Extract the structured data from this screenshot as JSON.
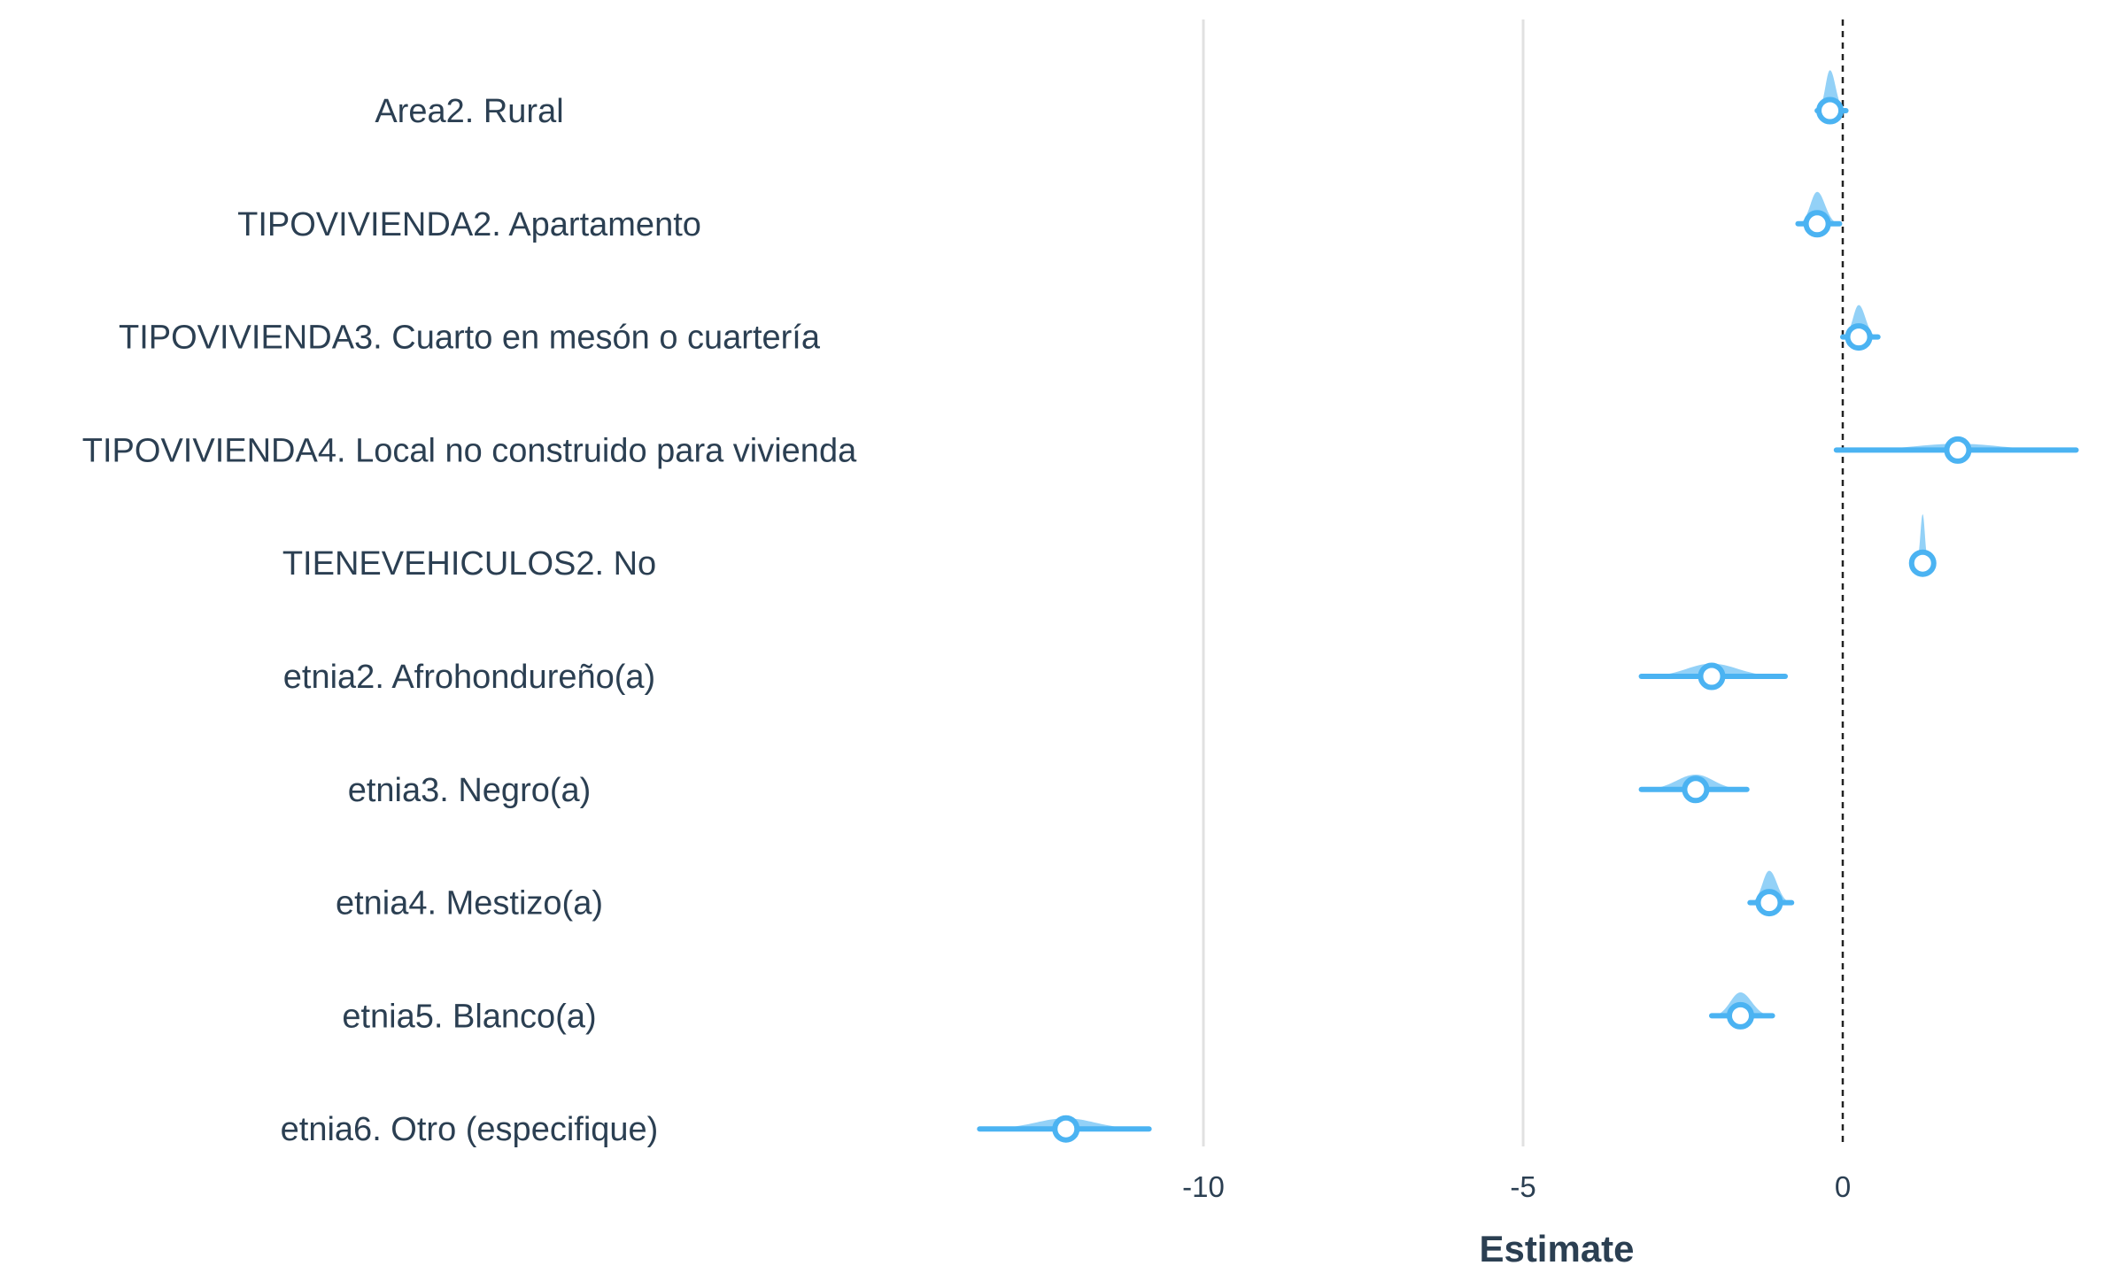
{
  "chart_data": {
    "type": "scatter",
    "xlabel": "Estimate",
    "ylabel": "",
    "xlim": [
      -13.8,
      4.0
    ],
    "x_ticks": [
      -10,
      -5,
      0
    ],
    "x_tick_labels": [
      "-10",
      "-5",
      "0"
    ],
    "reference_line": 0,
    "grid": true,
    "legend": "none",
    "colors": {
      "point": "#4bb3f2",
      "interval": "#4bb3f2",
      "density": "#4bb3f2",
      "marker_fill": "#ffffff",
      "reference_line": "#222222",
      "grid": "#e1e1e1",
      "text": "#2b3f52"
    },
    "terms": [
      {
        "label": "Area2. Rural",
        "estimate": -0.2,
        "low": -0.4,
        "high": 0.05,
        "density_height": 0.95
      },
      {
        "label": "TIPOVIVIENDA2. Apartamento",
        "estimate": -0.4,
        "low": -0.7,
        "high": -0.05,
        "density_height": 0.75
      },
      {
        "label": "TIPOVIVIENDA3. Cuarto en mesón o cuartería",
        "estimate": 0.25,
        "low": 0.0,
        "high": 0.55,
        "density_height": 0.75
      },
      {
        "label": "TIPOVIVIENDA4. Local no construido para vivienda",
        "estimate": 1.8,
        "low": -0.1,
        "high": 3.65,
        "density_height": 0.15
      },
      {
        "label": "TIENEVEHICULOS2. No",
        "estimate": 1.25,
        "low": 1.15,
        "high": 1.35,
        "density_height": 1.15
      },
      {
        "label": "etnia2. Afrohondureño(a)",
        "estimate": -2.05,
        "low": -3.15,
        "high": -0.9,
        "density_height": 0.3
      },
      {
        "label": "etnia3. Negro(a)",
        "estimate": -2.3,
        "low": -3.15,
        "high": -1.5,
        "density_height": 0.35
      },
      {
        "label": "etnia4. Mestizo(a)",
        "estimate": -1.15,
        "low": -1.45,
        "high": -0.8,
        "density_height": 0.75
      },
      {
        "label": "etnia5. Blanco(a)",
        "estimate": -1.6,
        "low": -2.05,
        "high": -1.1,
        "density_height": 0.55
      },
      {
        "label": "etnia6. Otro (especifique)",
        "estimate": -12.15,
        "low": -13.5,
        "high": -10.85,
        "density_height": 0.25
      }
    ]
  }
}
